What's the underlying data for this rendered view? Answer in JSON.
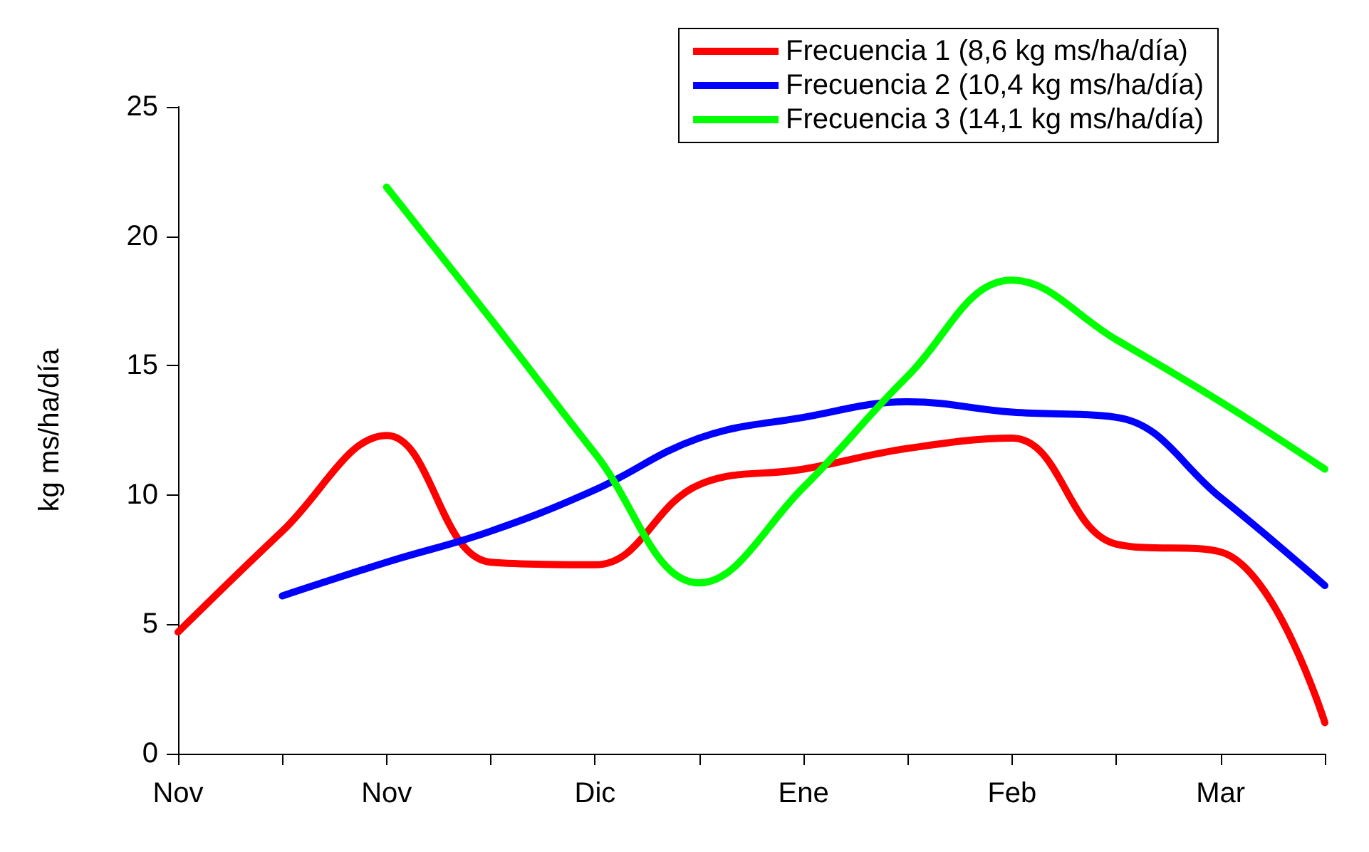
{
  "chart_data": {
    "type": "line",
    "ylabel": "kg ms/ha/día",
    "categories": [
      "Nov",
      null,
      "Nov",
      null,
      "Dic",
      null,
      "Ene",
      null,
      "Feb",
      null,
      "Mar",
      null
    ],
    "series": [
      {
        "name": "Frecuencia 1 (8,6 kg ms/ha/día)",
        "color": "#ff0000",
        "values": [
          4.7,
          8.6,
          12.3,
          7.4,
          7.3,
          10.4,
          11.0,
          11.8,
          12.2,
          8.1,
          7.8,
          1.2
        ]
      },
      {
        "name": "Frecuencia 2 (10,4 kg ms/ha/día)",
        "color": "#0000ff",
        "values": [
          null,
          6.1,
          7.4,
          8.6,
          10.2,
          12.2,
          13.0,
          13.6,
          13.2,
          13.0,
          9.9,
          6.5
        ]
      },
      {
        "name": "Frecuencia 3 (14,1 kg ms/ha/día)",
        "color": "#00ff00",
        "values": [
          null,
          null,
          21.9,
          16.8,
          11.6,
          6.6,
          10.3,
          14.6,
          18.3,
          16.0,
          13.6,
          11.0
        ]
      }
    ],
    "ylim": [
      0,
      25
    ],
    "yticks": [
      0,
      5,
      10,
      15,
      20,
      25
    ],
    "grid": false,
    "legend": "top right",
    "marker": "none",
    "line_style": "solid"
  }
}
